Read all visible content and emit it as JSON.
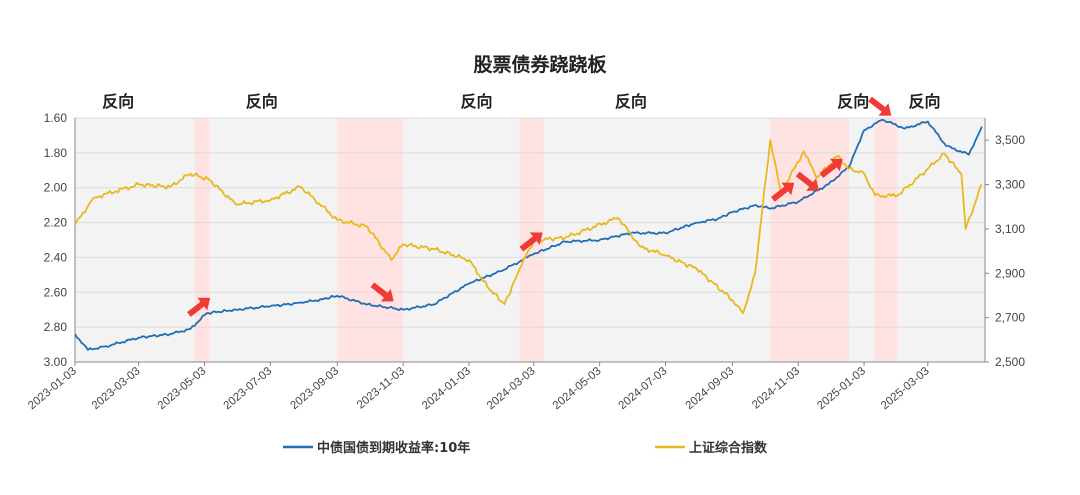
{
  "chart_data": {
    "type": "line",
    "title": "股票债券跷跷板",
    "annotation_label": "反向",
    "x_ticks": [
      "2023-01-03",
      "2023-03-03",
      "2023-05-03",
      "2023-07-03",
      "2023-09-03",
      "2023-11-03",
      "2024-01-03",
      "2024-03-03",
      "2024-05-03",
      "2024-07-03",
      "2024-09-03",
      "2024-11-03",
      "2025-01-03",
      "2025-03-03"
    ],
    "y_left": {
      "ticks": [
        "1.60",
        "1.80",
        "2.00",
        "2.20",
        "2.40",
        "2.60",
        "2.80",
        "3.00"
      ],
      "range": [
        1.6,
        3.0
      ],
      "inverted": true
    },
    "y_right": {
      "ticks": [
        "2,500",
        "2,700",
        "2,900",
        "3,100",
        "3,300",
        "3,500"
      ],
      "range": [
        2500,
        3600
      ]
    },
    "shaded_regions": [
      {
        "start": "2023-04-24",
        "end": "2023-05-08"
      },
      {
        "start": "2023-09-03",
        "end": "2023-11-03"
      },
      {
        "start": "2024-02-19",
        "end": "2024-03-12"
      },
      {
        "start": "2024-10-08",
        "end": "2024-12-20"
      },
      {
        "start": "2025-01-13",
        "end": "2025-02-03"
      }
    ],
    "annotation_dates": [
      "2023-02-12",
      "2023-06-25",
      "2024-01-10",
      "2024-06-01",
      "2024-12-24",
      "2025-02-28"
    ],
    "arrows": [
      {
        "date": "2023-04-28",
        "direction": "up"
      },
      {
        "date": "2023-10-15",
        "direction": "down"
      },
      {
        "date": "2024-03-01",
        "direction": "up"
      },
      {
        "date": "2024-10-20",
        "direction": "up"
      },
      {
        "date": "2024-11-12",
        "direction": "down"
      },
      {
        "date": "2024-12-04",
        "direction": "up"
      },
      {
        "date": "2025-01-18",
        "direction": "down"
      }
    ],
    "series": [
      {
        "name": "中债国债到期收益率:10年",
        "axis": "left",
        "color": "#1f6fb5",
        "x": [
          "2023-01-03",
          "2023-01-15",
          "2023-02-01",
          "2023-03-03",
          "2023-04-01",
          "2023-04-20",
          "2023-05-05",
          "2023-06-01",
          "2023-07-03",
          "2023-08-01",
          "2023-08-20",
          "2023-09-03",
          "2023-10-01",
          "2023-11-03",
          "2023-12-01",
          "2024-01-03",
          "2024-02-01",
          "2024-02-20",
          "2024-03-03",
          "2024-04-01",
          "2024-05-03",
          "2024-06-01",
          "2024-07-03",
          "2024-08-01",
          "2024-08-20",
          "2024-09-03",
          "2024-09-25",
          "2024-10-08",
          "2024-11-03",
          "2024-12-01",
          "2024-12-20",
          "2025-01-03",
          "2025-01-20",
          "2025-02-10",
          "2025-03-03",
          "2025-03-20",
          "2025-04-10",
          "2025-04-22"
        ],
        "y": [
          2.84,
          2.93,
          2.91,
          2.86,
          2.84,
          2.81,
          2.72,
          2.7,
          2.68,
          2.66,
          2.64,
          2.62,
          2.67,
          2.7,
          2.67,
          2.55,
          2.48,
          2.42,
          2.38,
          2.31,
          2.3,
          2.26,
          2.26,
          2.2,
          2.18,
          2.14,
          2.1,
          2.12,
          2.08,
          1.98,
          1.88,
          1.67,
          1.61,
          1.66,
          1.62,
          1.76,
          1.81,
          1.65
        ]
      },
      {
        "name": "上证综合指数",
        "axis": "right",
        "color": "#e8b81e",
        "x": [
          "2023-01-03",
          "2023-01-20",
          "2023-02-10",
          "2023-03-03",
          "2023-04-01",
          "2023-04-20",
          "2023-05-08",
          "2023-06-01",
          "2023-07-03",
          "2023-07-31",
          "2023-09-03",
          "2023-10-01",
          "2023-10-23",
          "2023-11-03",
          "2023-12-01",
          "2024-01-03",
          "2024-01-20",
          "2024-02-05",
          "2024-02-19",
          "2024-03-03",
          "2024-04-01",
          "2024-05-20",
          "2024-06-10",
          "2024-07-03",
          "2024-08-01",
          "2024-09-03",
          "2024-09-13",
          "2024-09-24",
          "2024-10-08",
          "2024-10-18",
          "2024-11-08",
          "2024-11-20",
          "2024-12-10",
          "2024-12-20",
          "2025-01-03",
          "2025-01-13",
          "2025-02-03",
          "2025-03-03",
          "2025-03-18",
          "2025-04-03",
          "2025-04-07",
          "2025-04-22"
        ],
        "y": [
          3117,
          3240,
          3270,
          3300,
          3290,
          3350,
          3320,
          3210,
          3230,
          3290,
          3140,
          3110,
          2960,
          3030,
          3010,
          2960,
          2840,
          2760,
          2920,
          3050,
          3060,
          3150,
          3020,
          2980,
          2920,
          2780,
          2720,
          2900,
          3500,
          3260,
          3450,
          3330,
          3430,
          3370,
          3350,
          3250,
          3250,
          3370,
          3440,
          3350,
          3100,
          3300
        ]
      }
    ]
  }
}
